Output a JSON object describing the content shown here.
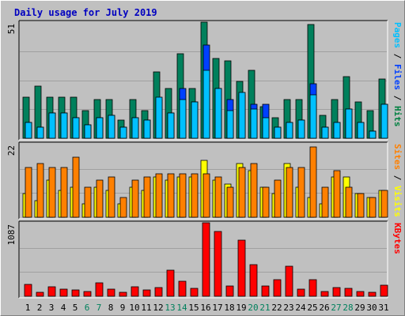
{
  "chart_data": {
    "type": "bar",
    "title": "Daily usage for July 2019",
    "categories": [
      "1",
      "2",
      "3",
      "4",
      "5",
      "6",
      "7",
      "8",
      "9",
      "10",
      "11",
      "12",
      "13",
      "14",
      "15",
      "16",
      "17",
      "18",
      "19",
      "20",
      "21",
      "22",
      "23",
      "24",
      "25",
      "26",
      "27",
      "28",
      "29",
      "30",
      "31"
    ],
    "weekend_days": [
      "6",
      "7",
      "13",
      "14",
      "20",
      "21",
      "27",
      "28"
    ],
    "panels": [
      {
        "name": "top",
        "ymax_label": "51",
        "ylim": [
          0,
          51
        ],
        "right_labels": [
          "Pages",
          " / ",
          "Files",
          " / ",
          "Hits"
        ],
        "right_label_colors": [
          "#00c0ff",
          "#000000",
          "#0040ff",
          "#000000",
          "#008040"
        ],
        "series": [
          {
            "name": "Hits",
            "color": "#00805c",
            "values": [
              18,
              23,
              18,
              18,
              18,
              12,
              17,
              17,
              8,
              17,
              12,
              29,
              22,
              37,
              22,
              51,
              35,
              34,
              25,
              30,
              14,
              9,
              17,
              17,
              50,
              10,
              17,
              27,
              16,
              12,
              26
            ]
          },
          {
            "name": "Files",
            "color": "#0040ff",
            "values": [
              7,
              5,
              11,
              11,
              9,
              6,
              9,
              10,
              5,
              9,
              8,
              17,
              11,
              22,
              16,
              41,
              22,
              17,
              19,
              15,
              15,
              5,
              7,
              8,
              24,
              5,
              7,
              13,
              7,
              3,
              15
            ]
          },
          {
            "name": "Pages",
            "color": "#00c0ff",
            "values": [
              7,
              5,
              11,
              11,
              9,
              6,
              9,
              10,
              5,
              9,
              8,
              18,
              11,
              17,
              16,
              30,
              22,
              12,
              20,
              13,
              9,
              5,
              7,
              8,
              19,
              5,
              7,
              13,
              7,
              3,
              15
            ]
          }
        ]
      },
      {
        "name": "middle",
        "ymax_label": "22",
        "ylim": [
          0,
          22
        ],
        "right_labels": [
          "Sites",
          " / ",
          "Visits"
        ],
        "right_label_colors": [
          "#ff8000",
          "#000000",
          "#ffff00"
        ],
        "series": [
          {
            "name": "Visits",
            "color": "#ffff00",
            "values": [
              7,
              5,
              11,
              8,
              9,
              4,
              9,
              8,
              4,
              9,
              8,
              12,
              11,
              12,
              12,
              17,
              11,
              10,
              16,
              14,
              9,
              7,
              16,
              9,
              6,
              4,
              12,
              12,
              7,
              6,
              8
            ]
          },
          {
            "name": "Sites",
            "color": "#ff8000",
            "values": [
              15,
              16,
              15,
              15,
              18,
              9,
              11,
              12,
              6,
              11,
              12,
              13,
              13,
              13,
              13,
              13,
              12,
              9,
              15,
              16,
              9,
              11,
              15,
              15,
              21,
              9,
              14,
              9,
              7,
              6,
              8
            ]
          }
        ]
      },
      {
        "name": "bottom",
        "ymax_label": "1087",
        "ylim": [
          0,
          1087
        ],
        "right_labels": [
          "KBytes"
        ],
        "right_label_colors": [
          "#ff0000"
        ],
        "series": [
          {
            "name": "KBytes",
            "color": "#ff0000",
            "values": [
              170,
              60,
              140,
              110,
              95,
              65,
              195,
              105,
              55,
              140,
              95,
              130,
              380,
              220,
              120,
              1087,
              960,
              150,
              830,
              470,
              150,
              240,
              445,
              110,
              250,
              75,
              130,
              120,
              70,
              60,
              165
            ]
          }
        ]
      }
    ]
  }
}
